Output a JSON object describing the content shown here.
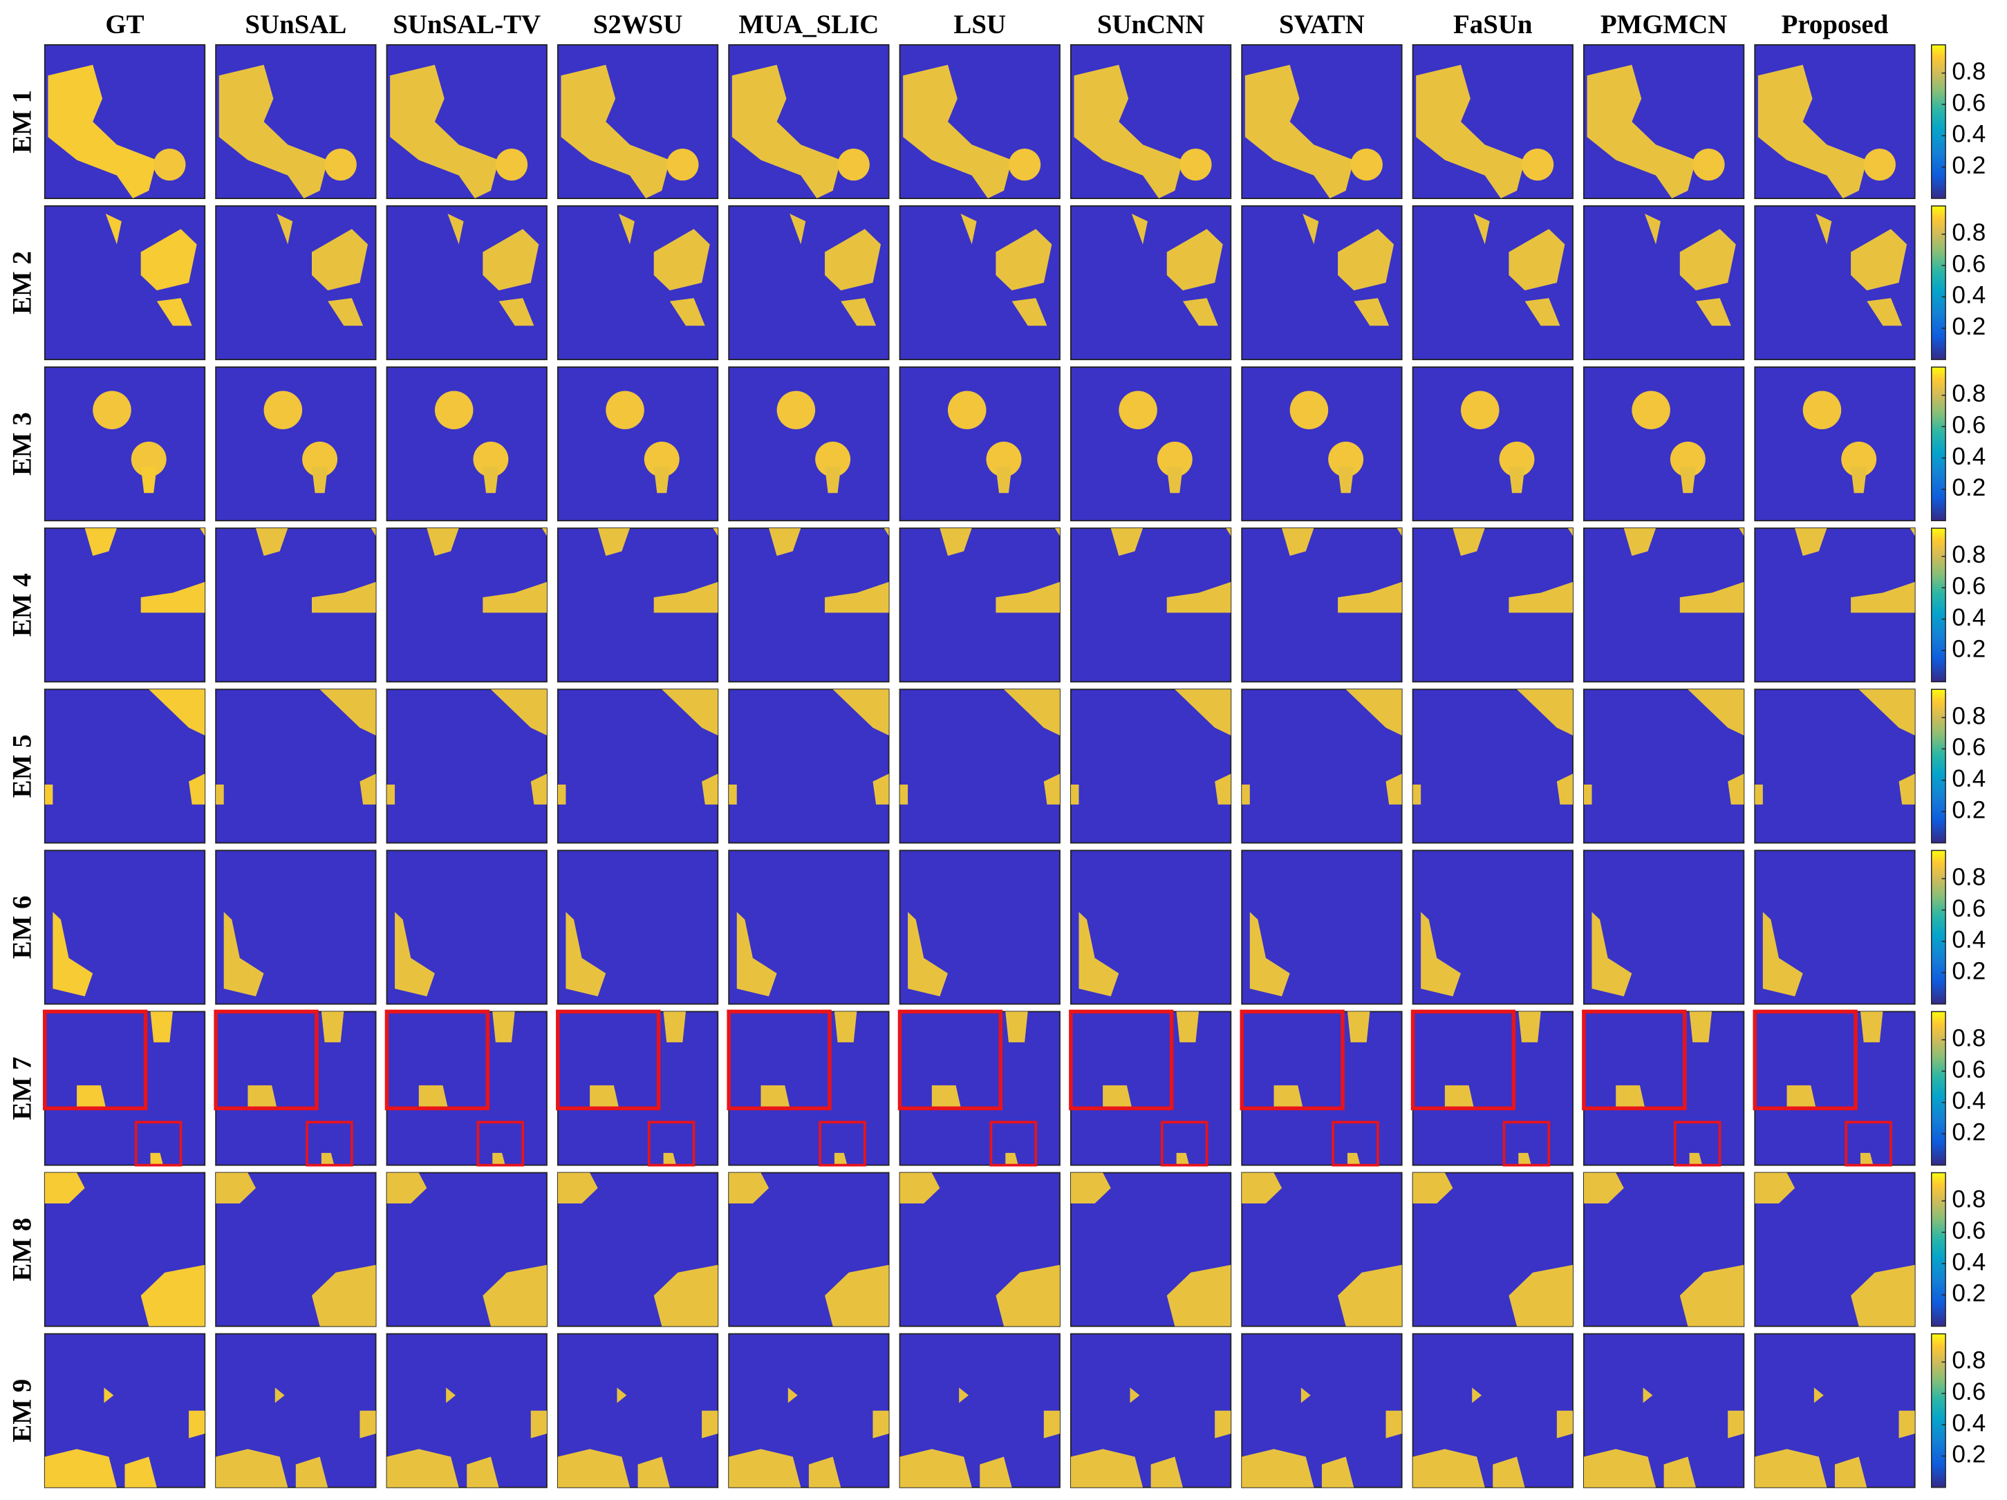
{
  "columns": [
    "GT",
    "SUnSAL",
    "SUnSAL-TV",
    "S2WSU",
    "MUA_SLIC",
    "LSU",
    "SUnCNN",
    "SVATN",
    "FaSUn",
    "PMGMCN",
    "Proposed"
  ],
  "rows": [
    "EM 1",
    "EM 2",
    "EM 3",
    "EM 4",
    "EM 5",
    "EM 6",
    "EM 7",
    "EM 8",
    "EM 9"
  ],
  "colorbar": {
    "ticks": [
      0.2,
      0.4,
      0.6,
      0.8
    ],
    "lim": [
      0,
      0.98
    ]
  }
}
